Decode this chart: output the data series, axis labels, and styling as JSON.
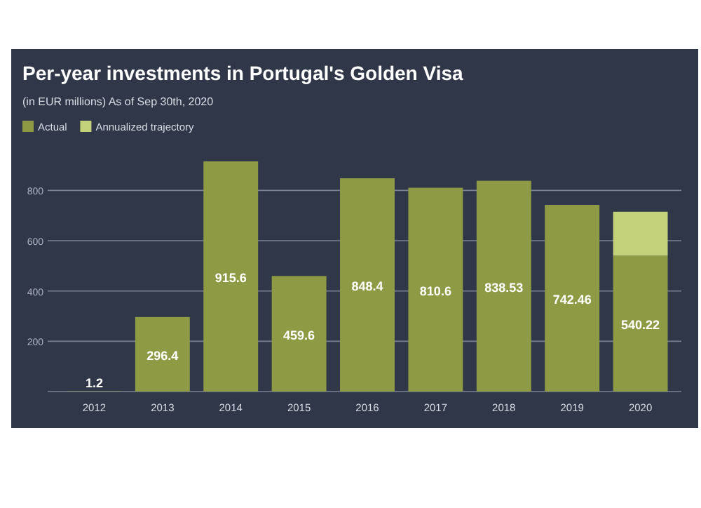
{
  "chart_data": {
    "type": "bar",
    "title": "Per-year investments in Portugal's Golden Visa",
    "subtitle": "(in EUR millions) As of Sep 30th, 2020",
    "categories": [
      "2012",
      "2013",
      "2014",
      "2015",
      "2016",
      "2017",
      "2018",
      "2019",
      "2020"
    ],
    "stacked": true,
    "series": [
      {
        "name": "Actual",
        "color": "#8f9a45",
        "values": [
          1.2,
          296.4,
          915.6,
          459.6,
          848.4,
          810.6,
          838.53,
          742.46,
          540.22
        ],
        "value_labels": [
          "1.2",
          "296.4",
          "915.6",
          "459.6",
          "848.4",
          "810.6",
          "838.53",
          "742.46",
          "540.22"
        ]
      },
      {
        "name": "Annualized trajectory",
        "color": "#c3d27a",
        "values": [
          null,
          null,
          null,
          null,
          null,
          null,
          null,
          null,
          175
        ]
      }
    ],
    "ylim": [
      0,
      915.6
    ],
    "yticks": [
      {
        "value": 0,
        "label": null
      },
      200,
      400,
      600,
      800
    ],
    "grid": "y",
    "legend": "top left"
  }
}
